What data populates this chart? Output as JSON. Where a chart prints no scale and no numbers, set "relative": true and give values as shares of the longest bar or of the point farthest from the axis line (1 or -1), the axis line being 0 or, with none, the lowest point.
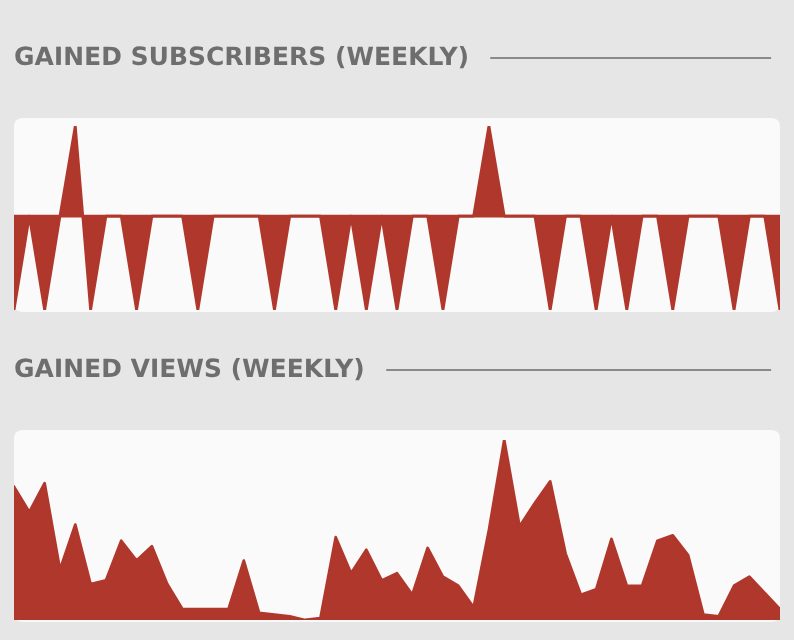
{
  "chart_data": [
    {
      "type": "area",
      "title": "GAINED SUBSCRIBERS (WEEKLY)",
      "relative": true,
      "ref_lines": [
        {
          "axis": "y",
          "value": 0,
          "color": "#b0372b"
        }
      ],
      "categories": [
        null,
        null,
        null,
        null,
        null,
        null,
        null,
        null,
        null,
        null,
        null,
        null,
        null,
        null,
        null,
        null,
        null,
        null,
        null,
        null,
        null,
        null,
        null,
        null,
        null,
        null,
        null,
        null,
        null,
        null,
        null,
        null,
        null,
        null,
        null,
        null,
        null,
        null,
        null,
        null,
        null,
        null,
        null,
        null,
        null,
        null,
        null,
        null,
        null,
        null,
        null
      ],
      "series": [
        {
          "color": "#b0372b",
          "values": [
            -1,
            0,
            -1,
            0,
            0.96,
            -1,
            0,
            0,
            -1,
            0,
            0,
            0,
            -1,
            0,
            0,
            0,
            0,
            -1,
            0,
            0,
            0,
            -1,
            0,
            -1,
            0,
            -1,
            0,
            0,
            -1,
            0,
            0,
            0.96,
            0,
            0,
            0,
            -1,
            0,
            0,
            -1,
            0,
            -1,
            0,
            0,
            -1,
            0,
            0,
            0,
            -1,
            0,
            0,
            -1
          ]
        }
      ]
    },
    {
      "type": "area",
      "title": "GAINED VIEWS (WEEKLY)",
      "relative": true,
      "categories": [
        null,
        null,
        null,
        null,
        null,
        null,
        null,
        null,
        null,
        null,
        null,
        null,
        null,
        null,
        null,
        null,
        null,
        null,
        null,
        null,
        null,
        null,
        null,
        null,
        null,
        null,
        null,
        null,
        null,
        null,
        null,
        null,
        null,
        null,
        null,
        null,
        null,
        null,
        null,
        null,
        null,
        null,
        null,
        null,
        null,
        null,
        null,
        null,
        null,
        null,
        null
      ],
      "series": [
        {
          "color": "#b0372b",
          "values": [
            0.74,
            0.6,
            0.76,
            0.28,
            0.53,
            0.2,
            0.22,
            0.44,
            0.33,
            0.41,
            0.2,
            0.06,
            0.06,
            0.06,
            0.06,
            0.33,
            0.04,
            0.03,
            0.02,
            0,
            0.01,
            0.46,
            0.26,
            0.39,
            0.22,
            0.26,
            0.14,
            0.4,
            0.24,
            0.19,
            0.07,
            0.5,
            1,
            0.52,
            0.65,
            0.77,
            0.37,
            0.14,
            0.17,
            0.45,
            0.19,
            0.19,
            0.44,
            0.47,
            0.36,
            0.03,
            0.02,
            0.19,
            0.24,
            0.15,
            0.06
          ]
        }
      ]
    }
  ]
}
